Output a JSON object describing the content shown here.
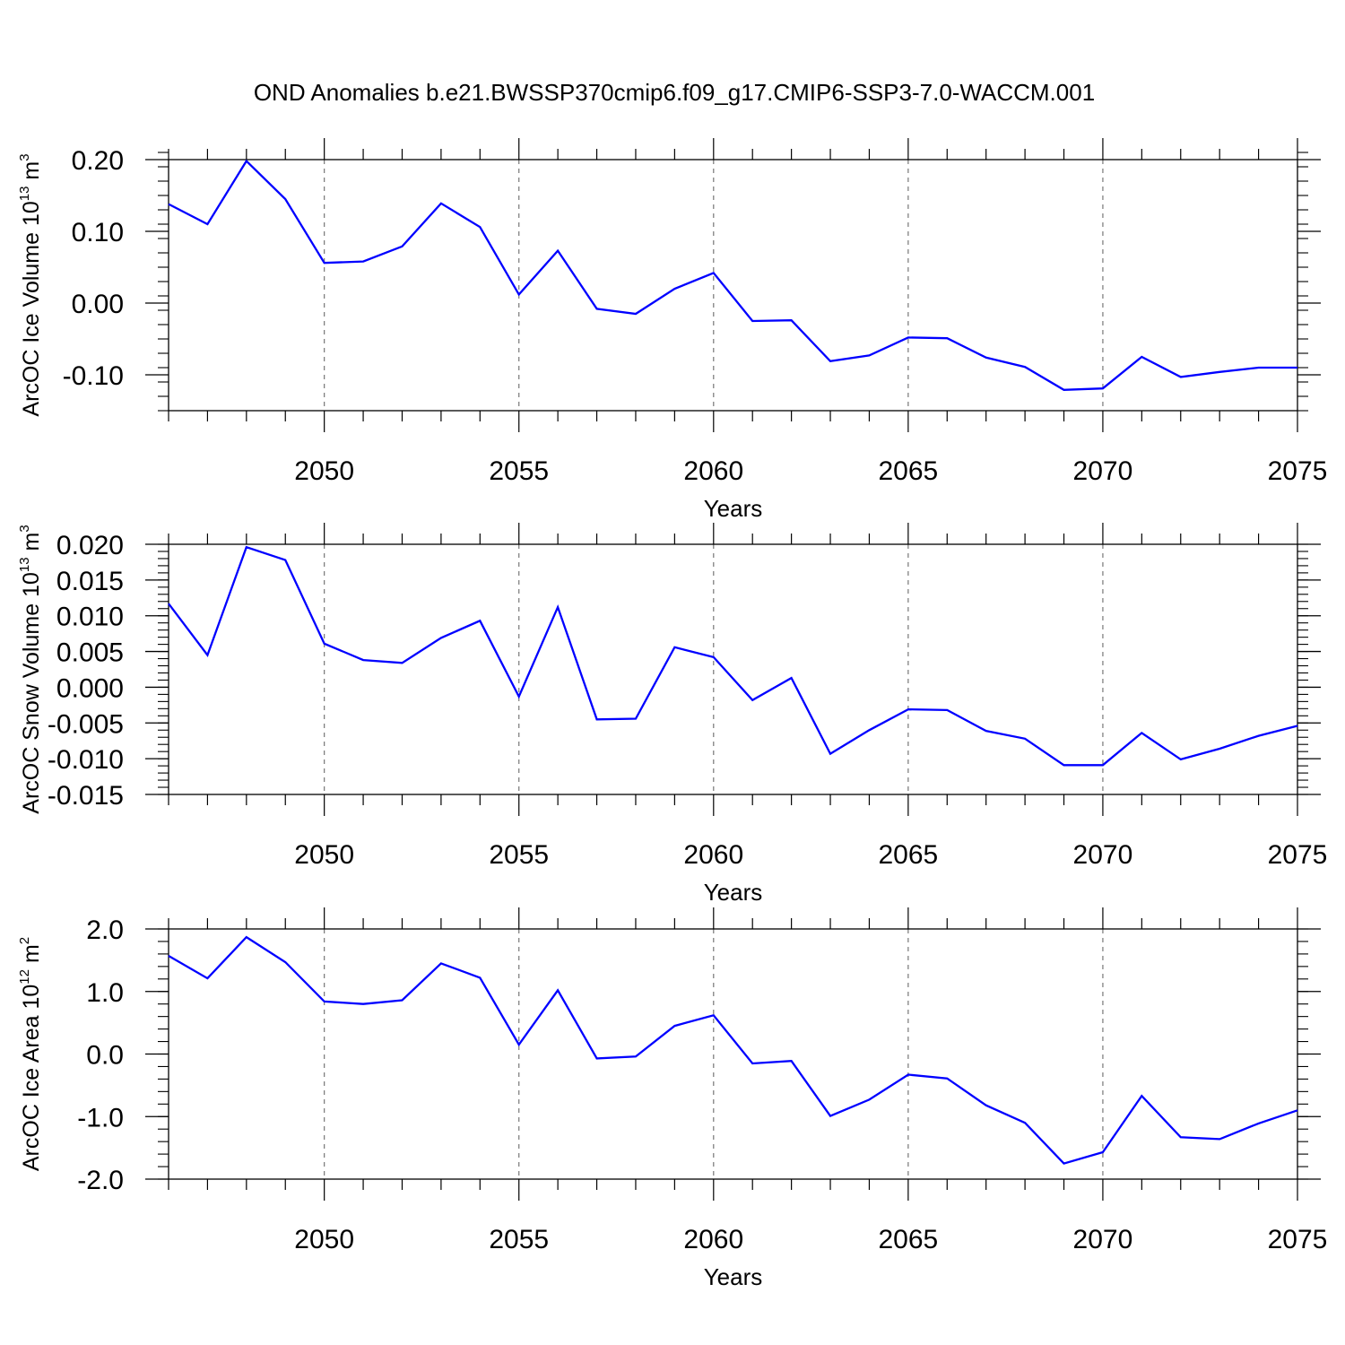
{
  "title": "OND Anomalies b.e21.BWSSP370cmip6.f09_g17.CMIP6-SSP3-7.0-WACCM.001",
  "chart_data": [
    {
      "type": "line",
      "xlabel": "Years",
      "ylabel": {
        "prefix": "ArcOC Ice Volume 10",
        "exponent": "13",
        "unit": " m",
        "unit_exponent": "3"
      },
      "x": [
        2046,
        2047,
        2048,
        2049,
        2050,
        2051,
        2052,
        2053,
        2054,
        2055,
        2056,
        2057,
        2058,
        2059,
        2060,
        2061,
        2062,
        2063,
        2064,
        2065,
        2066,
        2067,
        2068,
        2069,
        2070,
        2071,
        2072,
        2073,
        2074,
        2075
      ],
      "series": [
        {
          "color": "#0000ff",
          "values": [
            0.138,
            0.11,
            0.198,
            0.145,
            0.056,
            0.058,
            0.079,
            0.139,
            0.106,
            0.012,
            0.073,
            -0.008,
            -0.015,
            0.02,
            0.042,
            -0.025,
            -0.024,
            -0.081,
            -0.073,
            -0.048,
            -0.049,
            -0.076,
            -0.089,
            -0.121,
            -0.119,
            -0.075,
            -0.103,
            -0.096,
            -0.09,
            -0.09
          ]
        }
      ],
      "xlim": [
        2046,
        2075
      ],
      "ylim": [
        -0.15,
        0.2
      ],
      "yticks": [
        -0.1,
        0.0,
        0.1,
        0.2
      ],
      "ytick_labels": [
        "-0.10",
        "0.00",
        "0.10",
        "0.20"
      ],
      "yminor_step": 0.02,
      "xticks": [
        2050,
        2055,
        2060,
        2065,
        2070,
        2075
      ],
      "xtick_labels": [
        "2050",
        "2055",
        "2060",
        "2065",
        "2070",
        "2075"
      ],
      "xgrid": "dashed vertical lines at labelled years",
      "legend": "none"
    },
    {
      "type": "line",
      "xlabel": "Years",
      "ylabel": {
        "prefix": "ArcOC Snow Volume 10",
        "exponent": "13",
        "unit": " m",
        "unit_exponent": "3"
      },
      "x": [
        2046,
        2047,
        2048,
        2049,
        2050,
        2051,
        2052,
        2053,
        2054,
        2055,
        2056,
        2057,
        2058,
        2059,
        2060,
        2061,
        2062,
        2063,
        2064,
        2065,
        2066,
        2067,
        2068,
        2069,
        2070,
        2071,
        2072,
        2073,
        2074,
        2075
      ],
      "series": [
        {
          "color": "#0000ff",
          "values": [
            0.0117,
            0.0045,
            0.0196,
            0.0178,
            0.0061,
            0.0038,
            0.0034,
            0.0069,
            0.0093,
            -0.0013,
            0.0112,
            -0.0045,
            -0.0044,
            0.0056,
            0.0042,
            -0.0018,
            0.0013,
            -0.0093,
            -0.006,
            -0.0031,
            -0.0032,
            -0.0061,
            -0.0072,
            -0.0109,
            -0.0109,
            -0.0064,
            -0.0101,
            -0.0086,
            -0.0068,
            -0.0054
          ]
        }
      ],
      "xlim": [
        2046,
        2075
      ],
      "ylim": [
        -0.015,
        0.02
      ],
      "yticks": [
        -0.015,
        -0.01,
        -0.005,
        0.0,
        0.005,
        0.01,
        0.015,
        0.02
      ],
      "ytick_labels": [
        "-0.015",
        "-0.010",
        "-0.005",
        "0.000",
        "0.005",
        "0.010",
        "0.015",
        "0.020"
      ],
      "yminor_step": 0.001,
      "xticks": [
        2050,
        2055,
        2060,
        2065,
        2070,
        2075
      ],
      "xtick_labels": [
        "2050",
        "2055",
        "2060",
        "2065",
        "2070",
        "2075"
      ],
      "xgrid": "dashed vertical lines at labelled years",
      "legend": "none"
    },
    {
      "type": "line",
      "xlabel": "Years",
      "ylabel": {
        "prefix": "ArcOC Ice Area 10",
        "exponent": "12",
        "unit": " m",
        "unit_exponent": "2"
      },
      "x": [
        2046,
        2047,
        2048,
        2049,
        2050,
        2051,
        2052,
        2053,
        2054,
        2055,
        2056,
        2057,
        2058,
        2059,
        2060,
        2061,
        2062,
        2063,
        2064,
        2065,
        2066,
        2067,
        2068,
        2069,
        2070,
        2071,
        2072,
        2073,
        2074,
        2075
      ],
      "series": [
        {
          "color": "#0000ff",
          "values": [
            1.57,
            1.21,
            1.87,
            1.47,
            0.84,
            0.8,
            0.86,
            1.45,
            1.22,
            0.15,
            1.02,
            -0.07,
            -0.04,
            0.45,
            0.62,
            -0.15,
            -0.11,
            -0.99,
            -0.73,
            -0.33,
            -0.39,
            -0.82,
            -1.1,
            -1.75,
            -1.57,
            -0.67,
            -1.33,
            -1.36,
            -1.11,
            -0.9
          ]
        }
      ],
      "xlim": [
        2046,
        2075
      ],
      "ylim": [
        -2.0,
        2.0
      ],
      "yticks": [
        -2.0,
        -1.0,
        0.0,
        1.0,
        2.0
      ],
      "ytick_labels": [
        "-2.0",
        "-1.0",
        "0.0",
        "1.0",
        "2.0"
      ],
      "yminor_step": 0.2,
      "xticks": [
        2050,
        2055,
        2060,
        2065,
        2070,
        2075
      ],
      "xtick_labels": [
        "2050",
        "2055",
        "2060",
        "2065",
        "2070",
        "2075"
      ],
      "xgrid": "dashed vertical lines at labelled years",
      "legend": "none"
    }
  ]
}
